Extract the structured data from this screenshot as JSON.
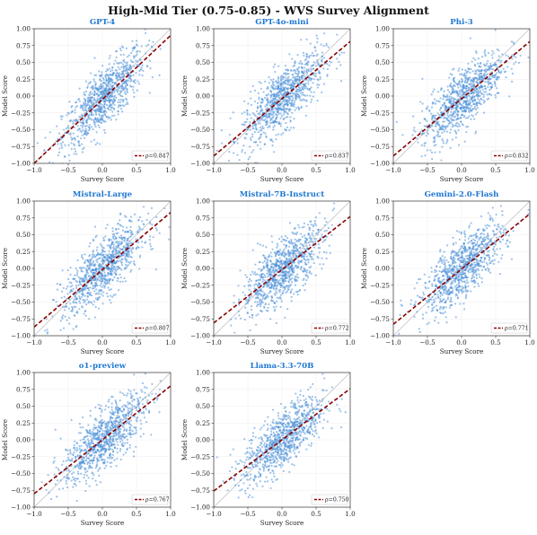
{
  "figure": {
    "title": "High-Mid Tier (0.75-0.85) - WVS Survey Alignment"
  },
  "colors": {
    "points": "#4a90d9",
    "fit_line": "#8b0000",
    "panel_title": "#1f78d1",
    "identity_line": "#bbbbbb"
  },
  "chart_data": [
    {
      "type": "scatter",
      "title": "GPT-4",
      "xlabel": "Survey Score",
      "ylabel": "Model Score",
      "xlim": [
        -1,
        1
      ],
      "ylim": [
        -1,
        1
      ],
      "xticks": [
        "−1.0",
        "−0.5",
        "0.0",
        "0.5",
        "1.0"
      ],
      "yticks": [
        "1.00",
        "0.75",
        "0.50",
        "0.25",
        "0.00",
        "−0.25",
        "−0.50",
        "−0.75",
        "−1.00"
      ],
      "legend": "ρ=0.847",
      "legend_position": "lower-right",
      "fit": {
        "slope": 0.95,
        "intercept": -0.05
      },
      "grid": true
    },
    {
      "type": "scatter",
      "title": "GPT-4o-mini",
      "xlabel": "Survey Score",
      "ylabel": "Model Score",
      "xlim": [
        -1,
        1
      ],
      "ylim": [
        -1,
        1
      ],
      "xticks": [
        "−1.0",
        "−0.5",
        "0.0",
        "0.5",
        "1.0"
      ],
      "yticks": [
        "1.00",
        "0.75",
        "0.50",
        "0.25",
        "0.00",
        "−0.25",
        "−0.50",
        "−0.75",
        "−1.00"
      ],
      "legend": "ρ=0.837",
      "legend_position": "lower-right",
      "fit": {
        "slope": 0.85,
        "intercept": -0.04
      },
      "grid": true
    },
    {
      "type": "scatter",
      "title": "Phi-3",
      "xlabel": "Survey Score",
      "ylabel": "Model Score",
      "xlim": [
        -1,
        1
      ],
      "ylim": [
        -1,
        1
      ],
      "xticks": [
        "−1.0",
        "−0.5",
        "0.0",
        "0.5",
        "1.0"
      ],
      "yticks": [
        "1.00",
        "0.75",
        "0.50",
        "0.25",
        "0.00",
        "−0.25",
        "−0.50",
        "−0.75",
        "−1.00"
      ],
      "legend": "ρ=0.832",
      "legend_position": "lower-right",
      "fit": {
        "slope": 0.85,
        "intercept": -0.04
      },
      "grid": true
    },
    {
      "type": "scatter",
      "title": "Mistral-Large",
      "xlabel": "Survey Score",
      "ylabel": "Model Score",
      "xlim": [
        -1,
        1
      ],
      "ylim": [
        -1,
        1
      ],
      "xticks": [
        "−1.0",
        "−0.5",
        "0.0",
        "0.5",
        "1.0"
      ],
      "yticks": [
        "1.00",
        "0.75",
        "0.50",
        "0.25",
        "0.00",
        "−0.25",
        "−0.50",
        "−0.75",
        "−1.00"
      ],
      "legend": "ρ=0.807",
      "legend_position": "lower-right",
      "fit": {
        "slope": 0.85,
        "intercept": -0.02
      },
      "grid": true
    },
    {
      "type": "scatter",
      "title": "Mistral-7B-Instruct",
      "xlabel": "Survey Score",
      "ylabel": "Model Score",
      "xlim": [
        -1,
        1
      ],
      "ylim": [
        -1,
        1
      ],
      "xticks": [
        "−1.0",
        "−0.5",
        "0.0",
        "0.5",
        "1.0"
      ],
      "yticks": [
        "1.00",
        "0.75",
        "0.50",
        "0.25",
        "0.00",
        "−0.25",
        "−0.50",
        "−0.75",
        "−1.00"
      ],
      "legend": "ρ=0.772",
      "legend_position": "lower-right",
      "fit": {
        "slope": 0.79,
        "intercept": -0.02
      },
      "grid": true
    },
    {
      "type": "scatter",
      "title": "Gemini-2.0-Flash",
      "xlabel": "Survey Score",
      "ylabel": "Model Score",
      "xlim": [
        -1,
        1
      ],
      "ylim": [
        -1,
        1
      ],
      "xticks": [
        "−1.0",
        "−0.5",
        "0.0",
        "0.5",
        "1.0"
      ],
      "yticks": [
        "1.00",
        "0.75",
        "0.50",
        "0.25",
        "0.00",
        "−0.25",
        "−0.50",
        "−0.75",
        "−1.00"
      ],
      "legend": "ρ=0.771",
      "legend_position": "lower-right",
      "fit": {
        "slope": 0.82,
        "intercept": -0.01
      },
      "grid": true
    },
    {
      "type": "scatter",
      "title": "o1-preview",
      "xlabel": "Survey Score",
      "ylabel": "Model Score",
      "xlim": [
        -1,
        1
      ],
      "ylim": [
        -1,
        1
      ],
      "xticks": [
        "−1.0",
        "−0.5",
        "0.0",
        "0.5",
        "1.0"
      ],
      "yticks": [
        "1.00",
        "0.75",
        "0.50",
        "0.25",
        "0.00",
        "−0.25",
        "−0.50",
        "−0.75",
        "−1.00"
      ],
      "legend": "ρ=0.767",
      "legend_position": "lower-right",
      "fit": {
        "slope": 0.8,
        "intercept": 0.0
      },
      "grid": true
    },
    {
      "type": "scatter",
      "title": "Llama-3.3-70B",
      "xlabel": "Survey Score",
      "ylabel": "Model Score",
      "xlim": [
        -1,
        1
      ],
      "ylim": [
        -1,
        1
      ],
      "xticks": [
        "−1.0",
        "−0.5",
        "0.0",
        "0.5",
        "1.0"
      ],
      "yticks": [
        "1.00",
        "0.75",
        "0.50",
        "0.25",
        "0.00",
        "−0.25",
        "−0.50",
        "−0.75",
        "−1.00"
      ],
      "legend": "ρ=0.750",
      "legend_position": "lower-right",
      "fit": {
        "slope": 0.76,
        "intercept": 0.0
      },
      "grid": true
    }
  ]
}
